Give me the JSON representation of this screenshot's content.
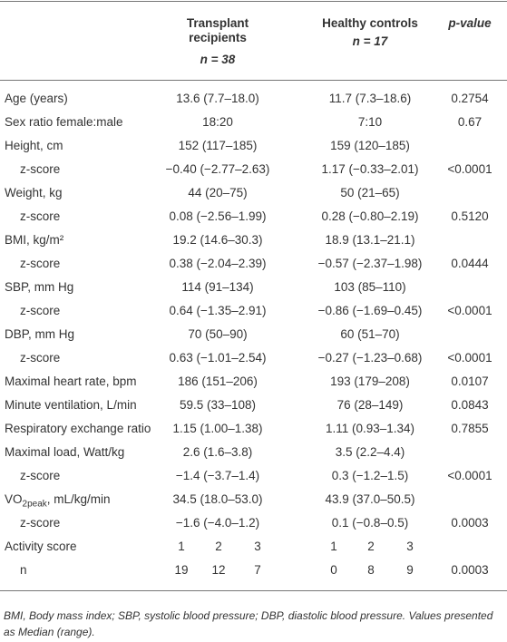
{
  "table": {
    "header": {
      "col1": "Transplant recipients",
      "col1_n": "n = 38",
      "col2": "Healthy controls",
      "col2_n": "n = 17",
      "p": "p-value"
    },
    "rows": [
      {
        "label": "Age (years)",
        "values": [
          "13.6 (7.7–18.0)",
          "11.7 (7.3–18.6)"
        ],
        "p": "0.2754"
      },
      {
        "label": "Sex ratio female:male",
        "values": [
          "18:20",
          "7:10"
        ],
        "p": "0.67"
      },
      {
        "label": "Height, cm",
        "values": [
          "152 (117–185)",
          "159 (120–185)"
        ],
        "sub": {
          "label": "z-score",
          "values": [
            "−0.40 (−2.77–2.63)",
            "1.17 (−0.33–2.01)"
          ],
          "p": "<0.0001"
        }
      },
      {
        "label": "Weight, kg",
        "values": [
          "44 (20–75)",
          "50 (21–65)"
        ],
        "sub": {
          "label": "z-score",
          "values": [
            "0.08 (−2.56–1.99)",
            "0.28 (−0.80–2.19)"
          ],
          "p": "0.5120"
        }
      },
      {
        "label": "BMI, kg/m²",
        "values": [
          "19.2 (14.6–30.3)",
          "18.9 (13.1–21.1)"
        ],
        "sub": {
          "label": "z-score",
          "values": [
            "0.38 (−2.04–2.39)",
            "−0.57 (−2.37–1.98)"
          ],
          "p": "0.0444"
        }
      },
      {
        "label": "SBP, mm Hg",
        "values": [
          "114 (91–134)",
          "103 (85–110)"
        ],
        "sub": {
          "label": "z-score",
          "values": [
            "0.64 (−1.35–2.91)",
            "−0.86 (−1.69–0.45)"
          ],
          "p": "<0.0001"
        }
      },
      {
        "label": "DBP, mm Hg",
        "values": [
          "70 (50–90)",
          "60 (51–70)"
        ],
        "sub": {
          "label": "z-score",
          "values": [
            "0.63 (−1.01–2.54)",
            "−0.27 (−1.23–0.68)"
          ],
          "p": "<0.0001"
        }
      },
      {
        "label": "Maximal heart rate, bpm",
        "values": [
          "186 (151–206)",
          "193 (179–208)"
        ],
        "p": "0.0107"
      },
      {
        "label": "Minute ventilation, L/min",
        "values": [
          "59.5 (33–108)",
          "76 (28–149)"
        ],
        "p": "0.0843"
      },
      {
        "label": "Respiratory exchange ratio",
        "values": [
          "1.15 (1.00–1.38)",
          "1.11 (0.93–1.34)"
        ],
        "p": "0.7855"
      },
      {
        "label": "Maximal load, Watt/kg",
        "values": [
          "2.6 (1.6–3.8)",
          "3.5 (2.2–4.4)"
        ],
        "sub": {
          "label": "z-score",
          "values": [
            "−1.4 (−3.7–1.4)",
            "0.3 (−1.2–1.5)"
          ],
          "p": "<0.0001"
        }
      },
      {
        "label_parts": [
          "VO",
          "2peak",
          ", mL/kg/min"
        ],
        "values": [
          "34.5 (18.0–53.0)",
          "43.9 (37.0–50.5)"
        ],
        "sub": {
          "label": "z-score",
          "values": [
            "−1.6 (−4.0–1.2)",
            "0.1 (−0.8–0.5)"
          ],
          "p": "0.0003"
        }
      },
      {
        "label": "Activity score",
        "groups": [
          [
            1,
            2,
            3
          ],
          [
            1,
            2,
            3
          ]
        ],
        "sub": {
          "label": "n",
          "groups": [
            [
              19,
              12,
              7
            ],
            [
              0,
              8,
              9
            ]
          ],
          "p": "0.0003"
        }
      }
    ],
    "footnote": "BMI, Body mass index; SBP, systolic blood pressure; DBP, diastolic blood pressure. Values presented as Median (range)."
  }
}
